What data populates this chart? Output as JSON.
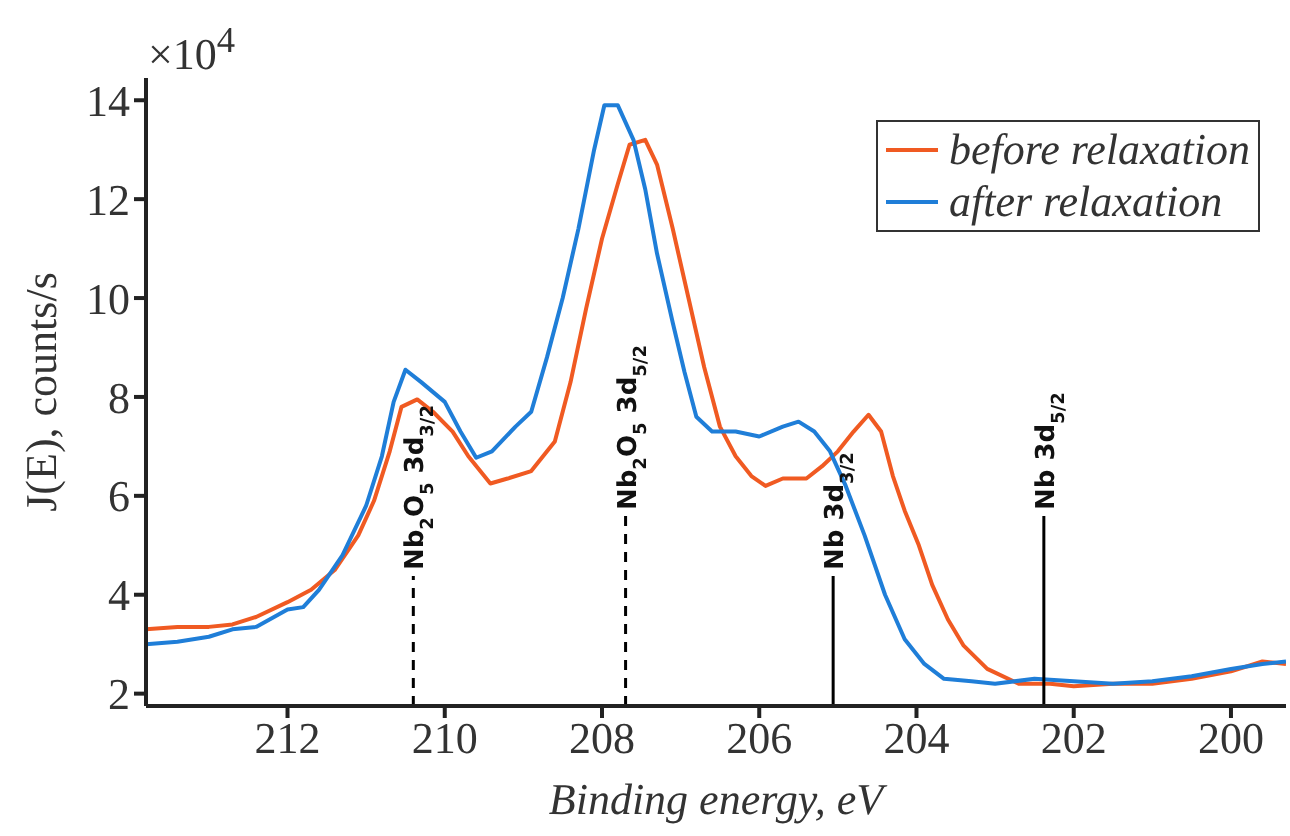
{
  "chart_data": {
    "type": "line",
    "xlabel": "Binding energy, eV",
    "ylabel": "J(E), counts/s",
    "annotations": [
      "×10$^{4}$"
    ],
    "xlim": [
      213.8,
      199.3
    ],
    "xticks": [
      212,
      210,
      208,
      206,
      204,
      202,
      200
    ],
    "ylim": [
      1.75,
      14.45
    ],
    "yticks": [
      2,
      4,
      6,
      8,
      10,
      12,
      14
    ],
    "grid": false,
    "legend": "top right",
    "marker": "none",
    "line_style": "solid",
    "series": [
      {
        "name": "before relaxation",
        "color": "#f05a22",
        "x": [
          213.8,
          213.4,
          213.0,
          212.7,
          212.4,
          212.0,
          211.7,
          211.4,
          211.1,
          210.9,
          210.7,
          210.55,
          210.35,
          210.15,
          209.9,
          209.7,
          209.42,
          209.2,
          208.9,
          208.6,
          208.4,
          208.2,
          208.0,
          207.8,
          207.65,
          207.45,
          207.3,
          207.1,
          206.9,
          206.7,
          206.5,
          206.3,
          206.1,
          205.92,
          205.7,
          205.4,
          205.2,
          205.0,
          204.8,
          204.61,
          204.45,
          204.3,
          204.15,
          203.97,
          203.8,
          203.6,
          203.4,
          203.1,
          202.7,
          202.3,
          202.0,
          201.5,
          201.0,
          200.5,
          200.0,
          199.6,
          199.3
        ],
        "values": [
          3.3,
          3.35,
          3.35,
          3.4,
          3.55,
          3.85,
          4.1,
          4.5,
          5.2,
          5.9,
          6.9,
          7.8,
          7.95,
          7.7,
          7.3,
          6.8,
          6.25,
          6.35,
          6.5,
          7.1,
          8.3,
          9.8,
          11.2,
          12.3,
          13.1,
          13.2,
          12.7,
          11.4,
          10.0,
          8.6,
          7.4,
          6.8,
          6.4,
          6.2,
          6.35,
          6.35,
          6.6,
          6.9,
          7.3,
          7.64,
          7.3,
          6.4,
          5.7,
          5.0,
          4.2,
          3.5,
          2.97,
          2.5,
          2.2,
          2.2,
          2.15,
          2.2,
          2.2,
          2.3,
          2.45,
          2.65,
          2.6
        ]
      },
      {
        "name": "after relaxation",
        "color": "#1f7ed8",
        "x": [
          213.8,
          213.4,
          213.0,
          212.7,
          212.4,
          212.0,
          211.8,
          211.6,
          211.3,
          211.0,
          210.8,
          210.65,
          210.5,
          210.3,
          210.0,
          209.8,
          209.6,
          209.4,
          209.1,
          208.9,
          208.7,
          208.5,
          208.3,
          208.1,
          207.97,
          207.8,
          207.6,
          207.45,
          207.3,
          207.1,
          206.95,
          206.8,
          206.6,
          206.3,
          206.0,
          205.7,
          205.5,
          205.3,
          205.1,
          204.9,
          204.66,
          204.4,
          204.15,
          203.9,
          203.65,
          203.3,
          203.0,
          202.5,
          202.0,
          201.5,
          201.0,
          200.5,
          200.0,
          199.6,
          199.3
        ],
        "values": [
          3.0,
          3.05,
          3.15,
          3.3,
          3.35,
          3.7,
          3.75,
          4.1,
          4.8,
          5.8,
          6.8,
          7.9,
          8.55,
          8.3,
          7.9,
          7.3,
          6.77,
          6.9,
          7.4,
          7.7,
          8.8,
          10.0,
          11.4,
          13.0,
          13.9,
          13.9,
          13.2,
          12.2,
          10.9,
          9.5,
          8.5,
          7.6,
          7.3,
          7.3,
          7.2,
          7.4,
          7.5,
          7.3,
          6.9,
          6.2,
          5.2,
          4.0,
          3.1,
          2.6,
          2.3,
          2.25,
          2.2,
          2.3,
          2.25,
          2.2,
          2.25,
          2.35,
          2.5,
          2.6,
          2.65
        ]
      }
    ],
    "ref_lines": [
      {
        "axis": "x",
        "value": 210.4,
        "label": "Nb$_{2}$O$_{5}$ 3d$_{3/2}$",
        "color": "#000000",
        "line_style": "dashed"
      },
      {
        "axis": "x",
        "value": 207.7,
        "label": "Nb$_{2}$O$_{5}$ 3d$_{5/2}$",
        "color": "#000000",
        "line_style": "dashed"
      },
      {
        "axis": "x",
        "value": 205.06,
        "label": "Nb 3d$_{3/2}$",
        "color": "#000000",
        "line_style": "solid"
      },
      {
        "axis": "x",
        "value": 202.38,
        "label": "Nb 3d$_{5/2}$",
        "color": "#000000",
        "line_style": "solid"
      }
    ]
  }
}
